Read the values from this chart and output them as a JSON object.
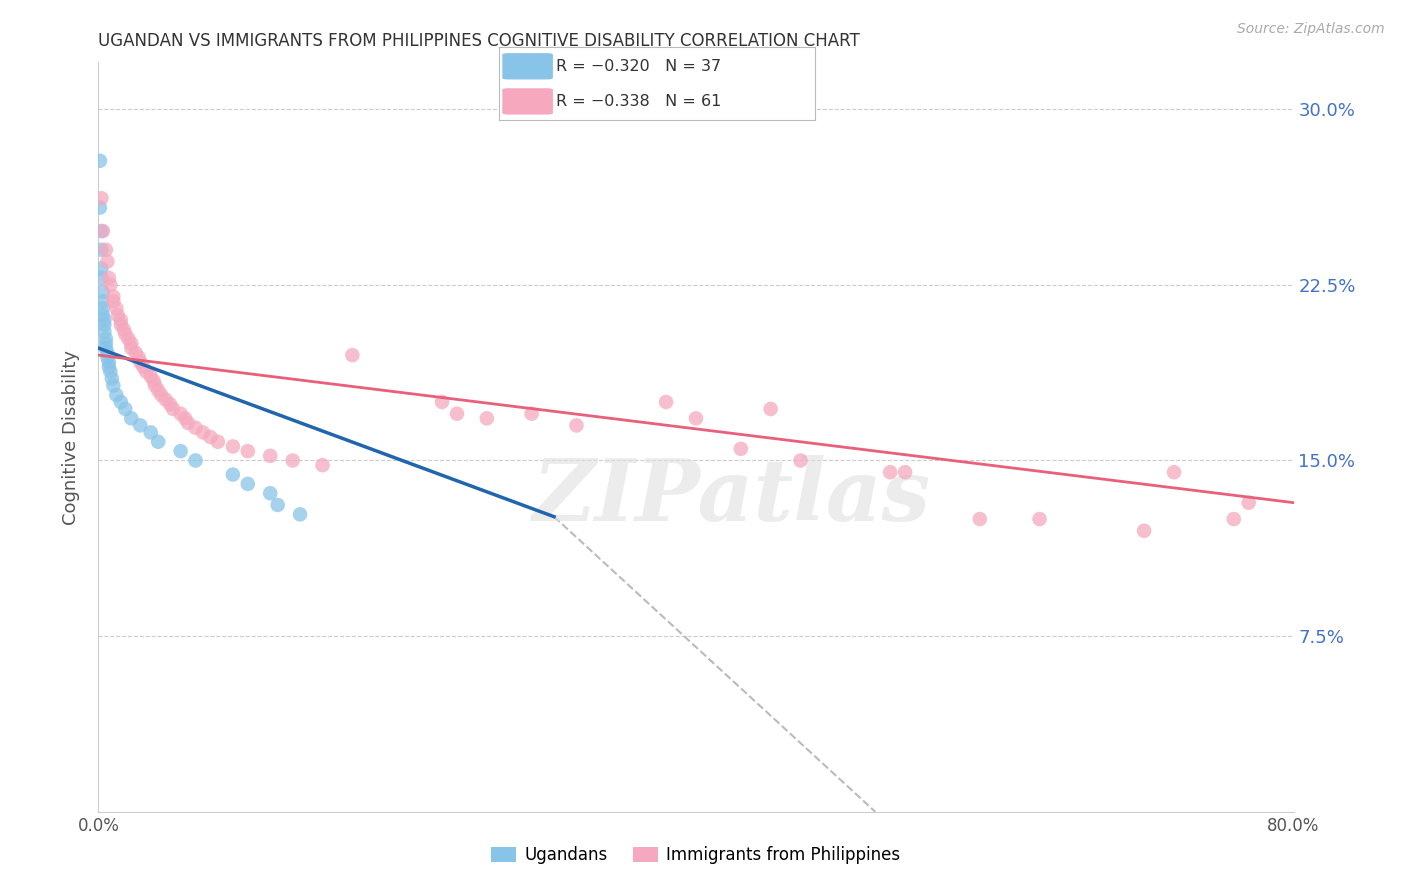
{
  "title": "UGANDAN VS IMMIGRANTS FROM PHILIPPINES COGNITIVE DISABILITY CORRELATION CHART",
  "source": "Source: ZipAtlas.com",
  "ylabel": "Cognitive Disability",
  "ytick_labels": [
    "30.0%",
    "22.5%",
    "15.0%",
    "7.5%"
  ],
  "ytick_values": [
    0.3,
    0.225,
    0.15,
    0.075
  ],
  "xlim": [
    0.0,
    0.8
  ],
  "ylim": [
    0.0,
    0.32
  ],
  "watermark": "ZIPatlas",
  "legend_blue_text": "R = −0.320   N = 37",
  "legend_pink_text": "R = −0.338   N = 61",
  "legend_label_blue": "Ugandans",
  "legend_label_pink": "Immigrants from Philippines",
  "blue_scatter": [
    [
      0.001,
      0.278
    ],
    [
      0.001,
      0.258
    ],
    [
      0.002,
      0.248
    ],
    [
      0.002,
      0.24
    ],
    [
      0.002,
      0.232
    ],
    [
      0.002,
      0.228
    ],
    [
      0.003,
      0.222
    ],
    [
      0.003,
      0.218
    ],
    [
      0.003,
      0.215
    ],
    [
      0.003,
      0.212
    ],
    [
      0.004,
      0.21
    ],
    [
      0.004,
      0.208
    ],
    [
      0.004,
      0.205
    ],
    [
      0.005,
      0.202
    ],
    [
      0.005,
      0.2
    ],
    [
      0.005,
      0.198
    ],
    [
      0.006,
      0.196
    ],
    [
      0.006,
      0.194
    ],
    [
      0.007,
      0.192
    ],
    [
      0.007,
      0.19
    ],
    [
      0.008,
      0.188
    ],
    [
      0.009,
      0.185
    ],
    [
      0.01,
      0.182
    ],
    [
      0.012,
      0.178
    ],
    [
      0.015,
      0.175
    ],
    [
      0.018,
      0.172
    ],
    [
      0.022,
      0.168
    ],
    [
      0.028,
      0.165
    ],
    [
      0.035,
      0.162
    ],
    [
      0.04,
      0.158
    ],
    [
      0.055,
      0.154
    ],
    [
      0.065,
      0.15
    ],
    [
      0.09,
      0.144
    ],
    [
      0.1,
      0.14
    ],
    [
      0.115,
      0.136
    ],
    [
      0.12,
      0.131
    ],
    [
      0.135,
      0.127
    ]
  ],
  "pink_scatter": [
    [
      0.002,
      0.262
    ],
    [
      0.003,
      0.248
    ],
    [
      0.005,
      0.24
    ],
    [
      0.006,
      0.235
    ],
    [
      0.007,
      0.228
    ],
    [
      0.008,
      0.225
    ],
    [
      0.01,
      0.22
    ],
    [
      0.01,
      0.218
    ],
    [
      0.012,
      0.215
    ],
    [
      0.013,
      0.212
    ],
    [
      0.015,
      0.21
    ],
    [
      0.015,
      0.208
    ],
    [
      0.017,
      0.206
    ],
    [
      0.018,
      0.204
    ],
    [
      0.02,
      0.202
    ],
    [
      0.022,
      0.2
    ],
    [
      0.022,
      0.198
    ],
    [
      0.025,
      0.196
    ],
    [
      0.027,
      0.194
    ],
    [
      0.028,
      0.192
    ],
    [
      0.03,
      0.19
    ],
    [
      0.032,
      0.188
    ],
    [
      0.035,
      0.186
    ],
    [
      0.037,
      0.184
    ],
    [
      0.038,
      0.182
    ],
    [
      0.04,
      0.18
    ],
    [
      0.042,
      0.178
    ],
    [
      0.045,
      0.176
    ],
    [
      0.048,
      0.174
    ],
    [
      0.05,
      0.172
    ],
    [
      0.055,
      0.17
    ],
    [
      0.058,
      0.168
    ],
    [
      0.06,
      0.166
    ],
    [
      0.065,
      0.164
    ],
    [
      0.07,
      0.162
    ],
    [
      0.075,
      0.16
    ],
    [
      0.08,
      0.158
    ],
    [
      0.09,
      0.156
    ],
    [
      0.1,
      0.154
    ],
    [
      0.115,
      0.152
    ],
    [
      0.13,
      0.15
    ],
    [
      0.15,
      0.148
    ],
    [
      0.17,
      0.195
    ],
    [
      0.23,
      0.175
    ],
    [
      0.24,
      0.17
    ],
    [
      0.26,
      0.168
    ],
    [
      0.29,
      0.17
    ],
    [
      0.32,
      0.165
    ],
    [
      0.38,
      0.175
    ],
    [
      0.4,
      0.168
    ],
    [
      0.43,
      0.155
    ],
    [
      0.45,
      0.172
    ],
    [
      0.47,
      0.15
    ],
    [
      0.53,
      0.145
    ],
    [
      0.54,
      0.145
    ],
    [
      0.59,
      0.125
    ],
    [
      0.63,
      0.125
    ],
    [
      0.7,
      0.12
    ],
    [
      0.72,
      0.145
    ],
    [
      0.76,
      0.125
    ],
    [
      0.77,
      0.132
    ]
  ],
  "blue_line_x": [
    0.0,
    0.305
  ],
  "blue_line_y": [
    0.198,
    0.126
  ],
  "pink_line_x": [
    0.0,
    0.8
  ],
  "pink_line_y": [
    0.195,
    0.132
  ],
  "dashed_line_x": [
    0.305,
    0.52
  ],
  "dashed_line_y": [
    0.126,
    0.0
  ],
  "blue_color": "#88c4e8",
  "pink_color": "#f5a8be",
  "blue_line_color": "#2166ac",
  "pink_line_color": "#e8607a",
  "dashed_line_color": "#bbbbbb",
  "background_color": "#ffffff",
  "grid_color": "#cccccc",
  "title_color": "#333333",
  "right_ytick_color": "#4472c4"
}
